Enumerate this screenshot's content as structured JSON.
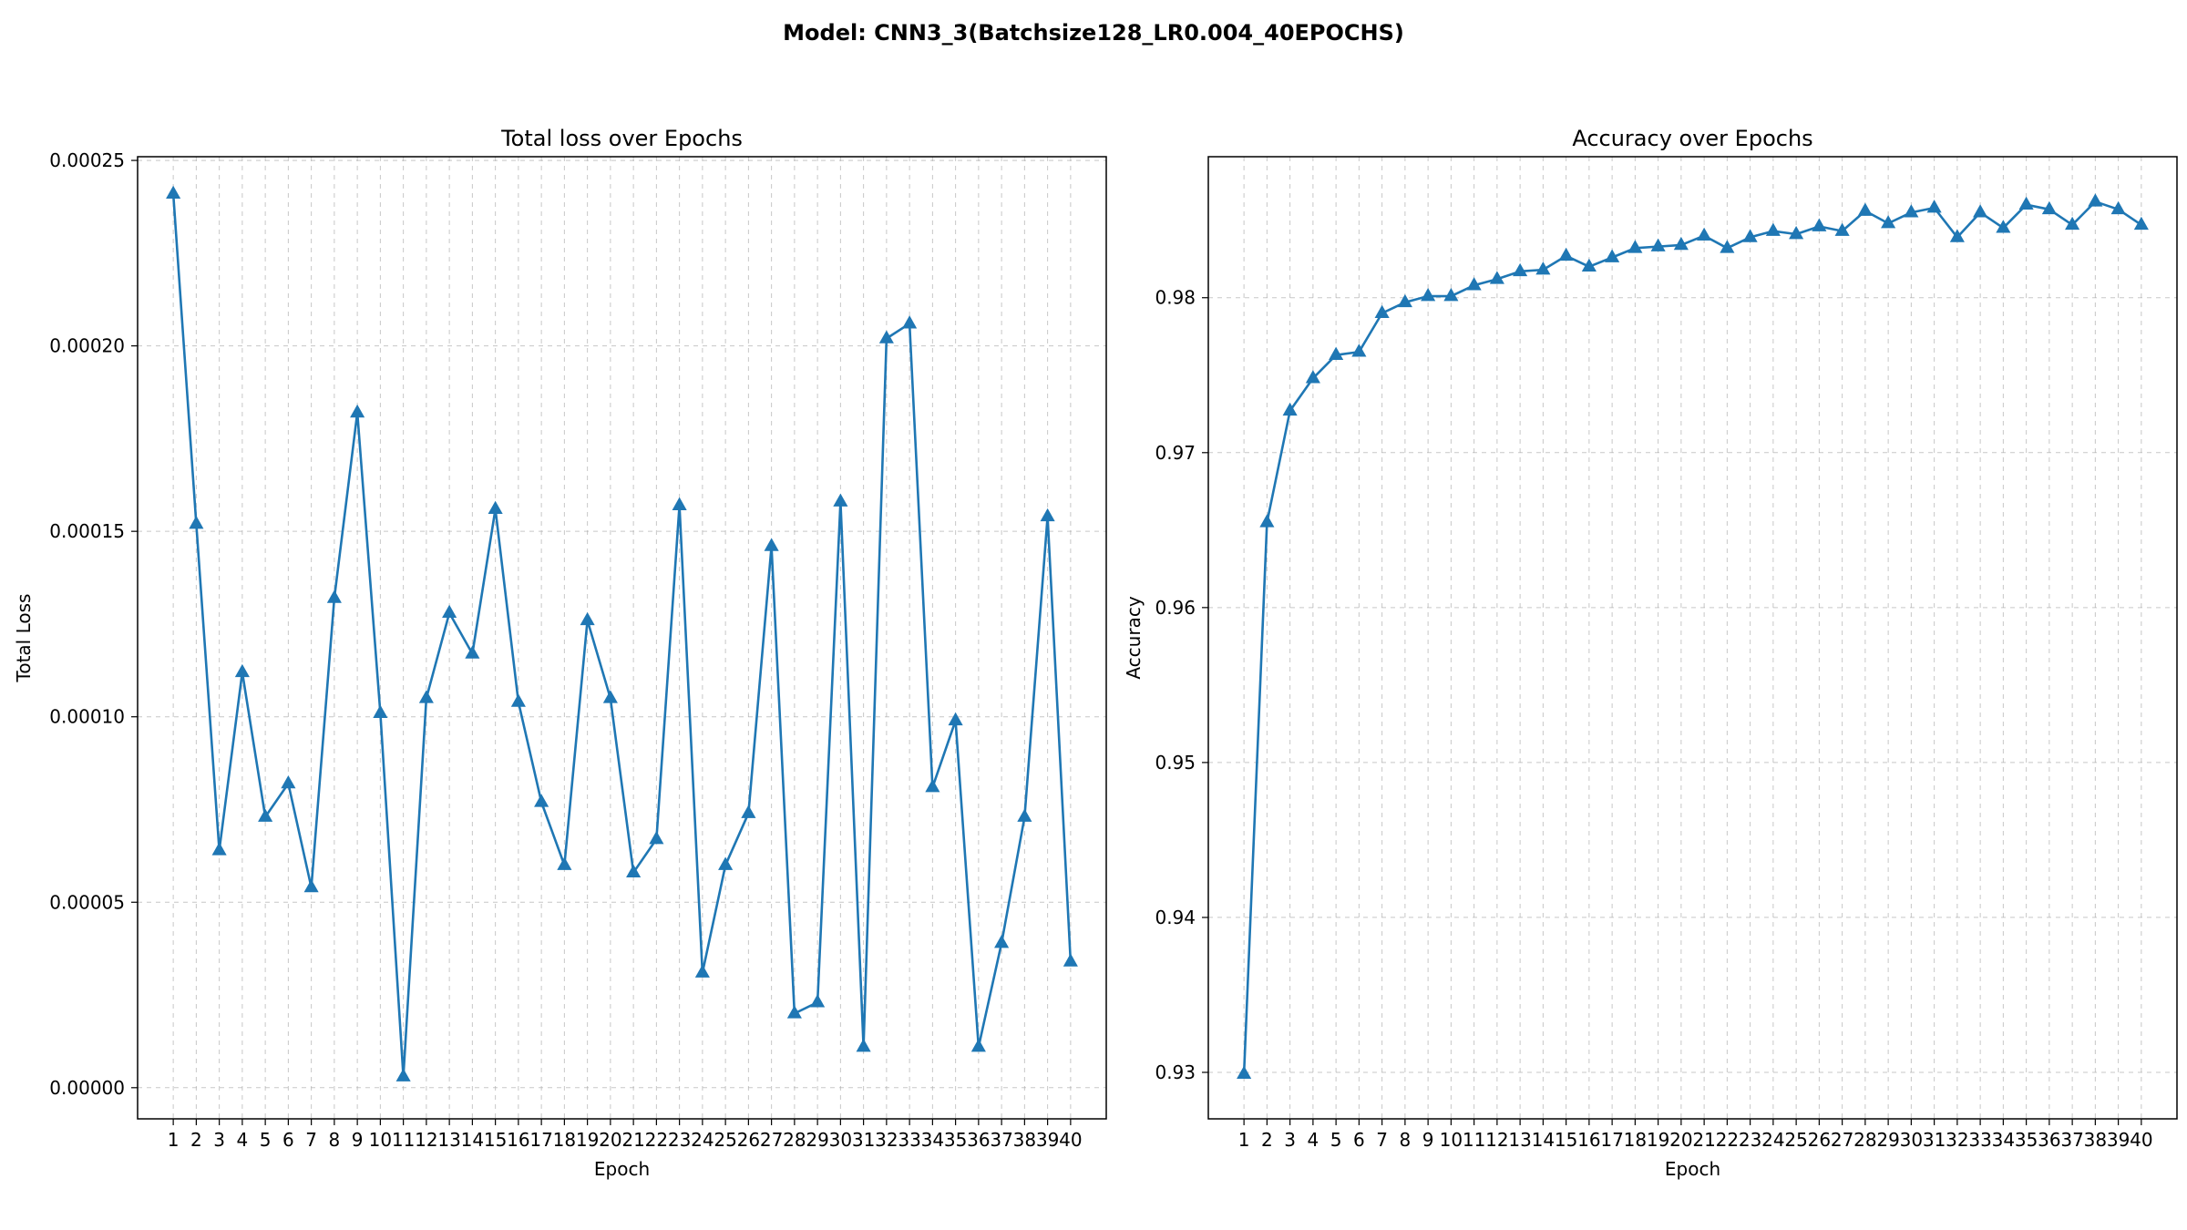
{
  "figure": {
    "title": "Model: CNN3_3(Batchsize128_LR0.004_40EPOCHS)"
  },
  "chart_data": [
    {
      "type": "line",
      "title": "Total loss over Epochs",
      "xlabel": "Epoch",
      "ylabel": "Total Loss",
      "x": [
        1,
        2,
        3,
        4,
        5,
        6,
        7,
        8,
        9,
        10,
        11,
        12,
        13,
        14,
        15,
        16,
        17,
        18,
        19,
        20,
        21,
        22,
        23,
        24,
        25,
        26,
        27,
        28,
        29,
        30,
        31,
        32,
        33,
        34,
        35,
        36,
        37,
        38,
        39,
        40
      ],
      "series": [
        {
          "values": [
            0.000241,
            0.000152,
            6.4e-05,
            0.000112,
            7.3e-05,
            8.2e-05,
            5.4e-05,
            0.000132,
            0.000182,
            0.000101,
            3e-06,
            0.000105,
            0.000128,
            0.000117,
            0.000156,
            0.000104,
            7.7e-05,
            6e-05,
            0.000126,
            0.000105,
            5.8e-05,
            6.7e-05,
            0.000157,
            3.1e-05,
            6e-05,
            7.4e-05,
            0.000146,
            2e-05,
            2.3e-05,
            0.000158,
            1.1e-05,
            0.000202,
            0.000206,
            8.1e-05,
            9.9e-05,
            1.1e-05,
            3.9e-05,
            7.3e-05,
            0.000154,
            3.4e-05
          ],
          "marker": "triangle-up",
          "color": "#1f77b4"
        }
      ],
      "ylim": [
        -8.4e-06,
        0.000251
      ],
      "yticks": [
        "0.00000",
        "0.00005",
        "0.00010",
        "0.00015",
        "0.00020",
        "0.00025"
      ],
      "ytick_values": [
        0,
        5e-05,
        0.0001,
        0.00015,
        0.0002,
        0.00025
      ],
      "grid": true
    },
    {
      "type": "line",
      "title": "Accuracy over Epochs",
      "xlabel": "Epoch",
      "ylabel": "Accuracy",
      "x": [
        1,
        2,
        3,
        4,
        5,
        6,
        7,
        8,
        9,
        10,
        11,
        12,
        13,
        14,
        15,
        16,
        17,
        18,
        19,
        20,
        21,
        22,
        23,
        24,
        25,
        26,
        27,
        28,
        29,
        30,
        31,
        32,
        33,
        34,
        35,
        36,
        37,
        38,
        39,
        40
      ],
      "series": [
        {
          "values": [
            0.9299,
            0.9655,
            0.9727,
            0.9748,
            0.9763,
            0.9765,
            0.979,
            0.9797,
            0.9801,
            0.9801,
            0.9808,
            0.9812,
            0.9817,
            0.9818,
            0.9827,
            0.982,
            0.9826,
            0.9832,
            0.9833,
            0.9834,
            0.984,
            0.9832,
            0.9839,
            0.9843,
            0.9841,
            0.9846,
            0.9843,
            0.9856,
            0.9848,
            0.9855,
            0.9858,
            0.9839,
            0.9855,
            0.9845,
            0.986,
            0.9857,
            0.9847,
            0.9862,
            0.9857,
            0.9847
          ],
          "marker": "triangle-up",
          "color": "#1f77b4"
        }
      ],
      "ylim": [
        0.927,
        0.9891
      ],
      "yticks": [
        "0.93",
        "0.94",
        "0.95",
        "0.96",
        "0.97",
        "0.98"
      ],
      "ytick_values": [
        0.93,
        0.94,
        0.95,
        0.96,
        0.97,
        0.98
      ],
      "grid": true
    }
  ]
}
